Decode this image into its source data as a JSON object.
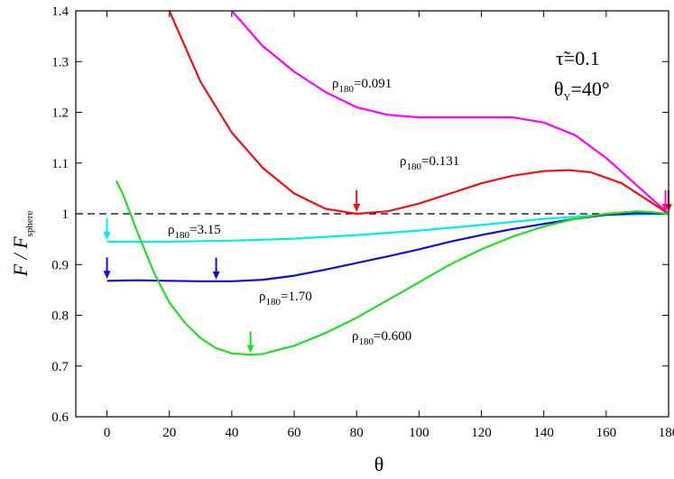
{
  "chart_data": {
    "type": "line",
    "xlabel": "θ",
    "ylabel": {
      "main": "F / F",
      "sub": "sphere"
    },
    "xlim": [
      -10,
      180
    ],
    "ylim": [
      0.6,
      1.4
    ],
    "xticks": [
      0,
      20,
      40,
      60,
      80,
      100,
      120,
      140,
      160,
      180
    ],
    "yticks": [
      0.6,
      0.7,
      0.8,
      0.9,
      1.0,
      1.1,
      1.2,
      1.3,
      1.4
    ],
    "ytick_labels": [
      "0.6",
      "0.7",
      "0.8",
      "0.9",
      "1",
      "1.1",
      "1.2",
      "1.3",
      "1.4"
    ],
    "reference_line": {
      "y": 1.0,
      "style": "dashed",
      "color": "#000000"
    },
    "annotation": {
      "tau": {
        "main": "τ̃=0.1"
      },
      "theta": {
        "main": "θ",
        "sub": "Y",
        "value": "=40°"
      }
    },
    "series": [
      {
        "label_main": "ρ",
        "label_sub": "180",
        "label_value": "=0.091",
        "color": "#ff00ff",
        "points": [
          [
            40,
            1.4
          ],
          [
            50,
            1.33
          ],
          [
            60,
            1.28
          ],
          [
            70,
            1.24
          ],
          [
            80,
            1.21
          ],
          [
            90,
            1.195
          ],
          [
            100,
            1.19
          ],
          [
            110,
            1.19
          ],
          [
            120,
            1.19
          ],
          [
            130,
            1.19
          ],
          [
            140,
            1.18
          ],
          [
            150,
            1.155
          ],
          [
            160,
            1.11
          ],
          [
            170,
            1.055
          ],
          [
            180,
            1.0
          ]
        ],
        "arrows": [
          [
            179,
            1.0
          ]
        ]
      },
      {
        "label_main": "ρ",
        "label_sub": "180",
        "label_value": "=0.131",
        "color": "#ee1111",
        "points": [
          [
            20,
            1.4
          ],
          [
            25,
            1.33
          ],
          [
            30,
            1.26
          ],
          [
            40,
            1.16
          ],
          [
            50,
            1.09
          ],
          [
            60,
            1.04
          ],
          [
            70,
            1.01
          ],
          [
            80,
            1.0
          ],
          [
            90,
            1.005
          ],
          [
            100,
            1.02
          ],
          [
            110,
            1.04
          ],
          [
            120,
            1.06
          ],
          [
            130,
            1.075
          ],
          [
            140,
            1.084
          ],
          [
            148,
            1.086
          ],
          [
            155,
            1.082
          ],
          [
            165,
            1.06
          ],
          [
            175,
            1.02
          ],
          [
            180,
            1.0
          ]
        ],
        "arrows": [
          [
            80,
            1.0
          ],
          [
            180,
            1.0
          ]
        ]
      },
      {
        "label_main": "ρ",
        "label_sub": "180",
        "label_value": "=3.15",
        "color": "#00eeee",
        "points": [
          [
            0,
            0.945
          ],
          [
            20,
            0.945
          ],
          [
            40,
            0.947
          ],
          [
            60,
            0.951
          ],
          [
            80,
            0.958
          ],
          [
            100,
            0.967
          ],
          [
            120,
            0.978
          ],
          [
            140,
            0.99
          ],
          [
            160,
            0.998
          ],
          [
            180,
            1.0
          ]
        ],
        "arrows": [
          [
            0,
            0.945
          ]
        ]
      },
      {
        "label_main": "ρ",
        "label_sub": "180",
        "label_value": "=1.70",
        "color": "#1010cc",
        "points": [
          [
            0,
            0.868
          ],
          [
            10,
            0.869
          ],
          [
            20,
            0.868
          ],
          [
            30,
            0.867
          ],
          [
            40,
            0.867
          ],
          [
            50,
            0.87
          ],
          [
            60,
            0.878
          ],
          [
            70,
            0.89
          ],
          [
            80,
            0.903
          ],
          [
            90,
            0.916
          ],
          [
            100,
            0.93
          ],
          [
            110,
            0.945
          ],
          [
            120,
            0.958
          ],
          [
            130,
            0.97
          ],
          [
            140,
            0.98
          ],
          [
            150,
            0.99
          ],
          [
            160,
            0.998
          ],
          [
            170,
            1.001
          ],
          [
            180,
            1.0
          ]
        ],
        "arrows": [
          [
            0,
            0.868
          ],
          [
            35,
            0.867
          ]
        ]
      },
      {
        "label_main": "ρ",
        "label_sub": "180",
        "label_value": "=0.600",
        "color": "#22dd22",
        "points": [
          [
            3,
            1.065
          ],
          [
            5,
            1.04
          ],
          [
            10,
            0.96
          ],
          [
            15,
            0.885
          ],
          [
            20,
            0.825
          ],
          [
            25,
            0.785
          ],
          [
            30,
            0.755
          ],
          [
            35,
            0.735
          ],
          [
            40,
            0.725
          ],
          [
            46,
            0.722
          ],
          [
            50,
            0.724
          ],
          [
            60,
            0.74
          ],
          [
            70,
            0.765
          ],
          [
            80,
            0.795
          ],
          [
            90,
            0.83
          ],
          [
            100,
            0.865
          ],
          [
            110,
            0.9
          ],
          [
            120,
            0.93
          ],
          [
            130,
            0.955
          ],
          [
            140,
            0.975
          ],
          [
            150,
            0.99
          ],
          [
            160,
            1.0
          ],
          [
            170,
            1.005
          ],
          [
            175,
            1.003
          ],
          [
            180,
            1.0
          ]
        ],
        "arrows": [
          [
            46,
            0.722
          ]
        ]
      }
    ]
  }
}
